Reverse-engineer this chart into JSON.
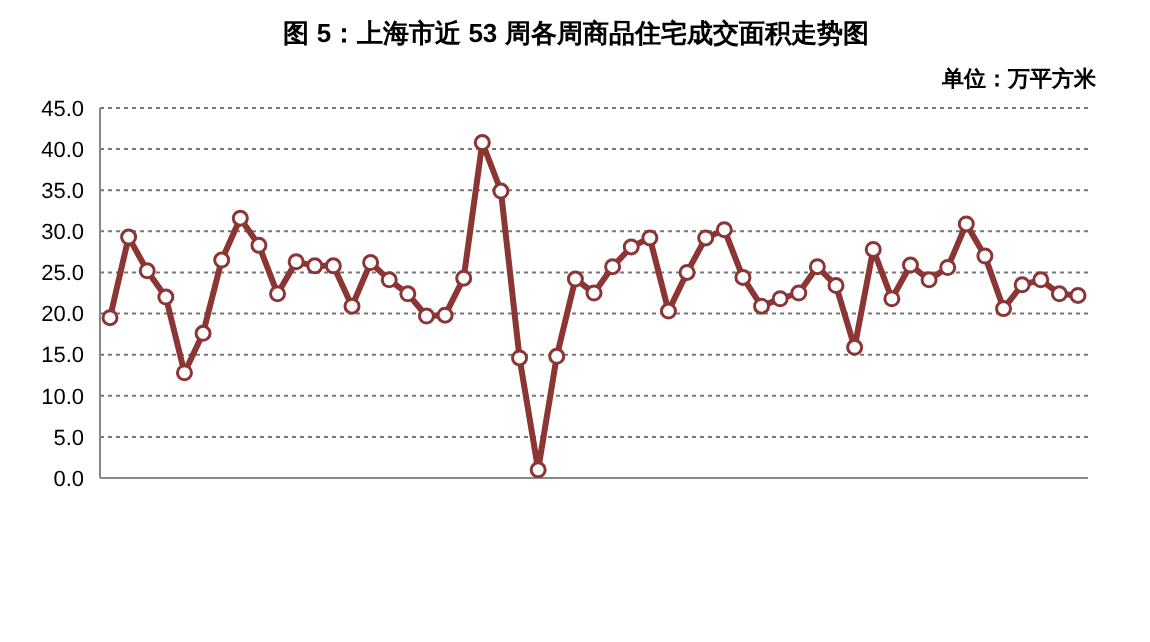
{
  "chart_data": {
    "type": "line",
    "title": "图 5：上海市近 53 周各周商品住宅成交面积走势图",
    "annotations": [
      "单位：万平方米"
    ],
    "categories": [
      null,
      null,
      null,
      null,
      null,
      null,
      null,
      null,
      null,
      null,
      null,
      null,
      null,
      null,
      null,
      null,
      null,
      null,
      null,
      null,
      null,
      null,
      null,
      null,
      null,
      null,
      null,
      null,
      null,
      null,
      null,
      null,
      null,
      null,
      null,
      null,
      null,
      null,
      null,
      null,
      null,
      null,
      null,
      null,
      null,
      null,
      null,
      null,
      null,
      null,
      null,
      null,
      null
    ],
    "series": [
      {
        "color": "#8b3535",
        "values": [
          19.5,
          29.3,
          25.2,
          22.0,
          12.8,
          17.6,
          26.5,
          31.6,
          28.3,
          22.4,
          26.3,
          25.8,
          25.8,
          20.9,
          26.2,
          24.1,
          22.4,
          19.7,
          19.8,
          24.3,
          40.8,
          34.9,
          14.6,
          1.0,
          14.8,
          24.2,
          22.5,
          25.7,
          28.1,
          29.2,
          20.3,
          25.0,
          29.2,
          30.2,
          24.4,
          20.9,
          21.8,
          22.5,
          25.7,
          23.4,
          15.9,
          27.8,
          21.8,
          25.9,
          24.1,
          25.6,
          30.9,
          27.0,
          20.6,
          23.5,
          24.1,
          22.4,
          22.2
        ]
      }
    ],
    "ylim": [
      0,
      45
    ],
    "yticks": [
      {
        "value": 0,
        "label": "0.0"
      },
      {
        "value": 5,
        "label": "5.0"
      },
      {
        "value": 10,
        "label": "10.0"
      },
      {
        "value": 15,
        "label": "15.0"
      },
      {
        "value": 20,
        "label": "20.0"
      },
      {
        "value": 25,
        "label": "25.0"
      },
      {
        "value": 30,
        "label": "30.0"
      },
      {
        "value": 35,
        "label": "35.0"
      },
      {
        "value": 40,
        "label": "40.0"
      },
      {
        "value": 45,
        "label": "45.0"
      }
    ],
    "grid": "y",
    "marker": "circle",
    "line_style": "solid"
  }
}
